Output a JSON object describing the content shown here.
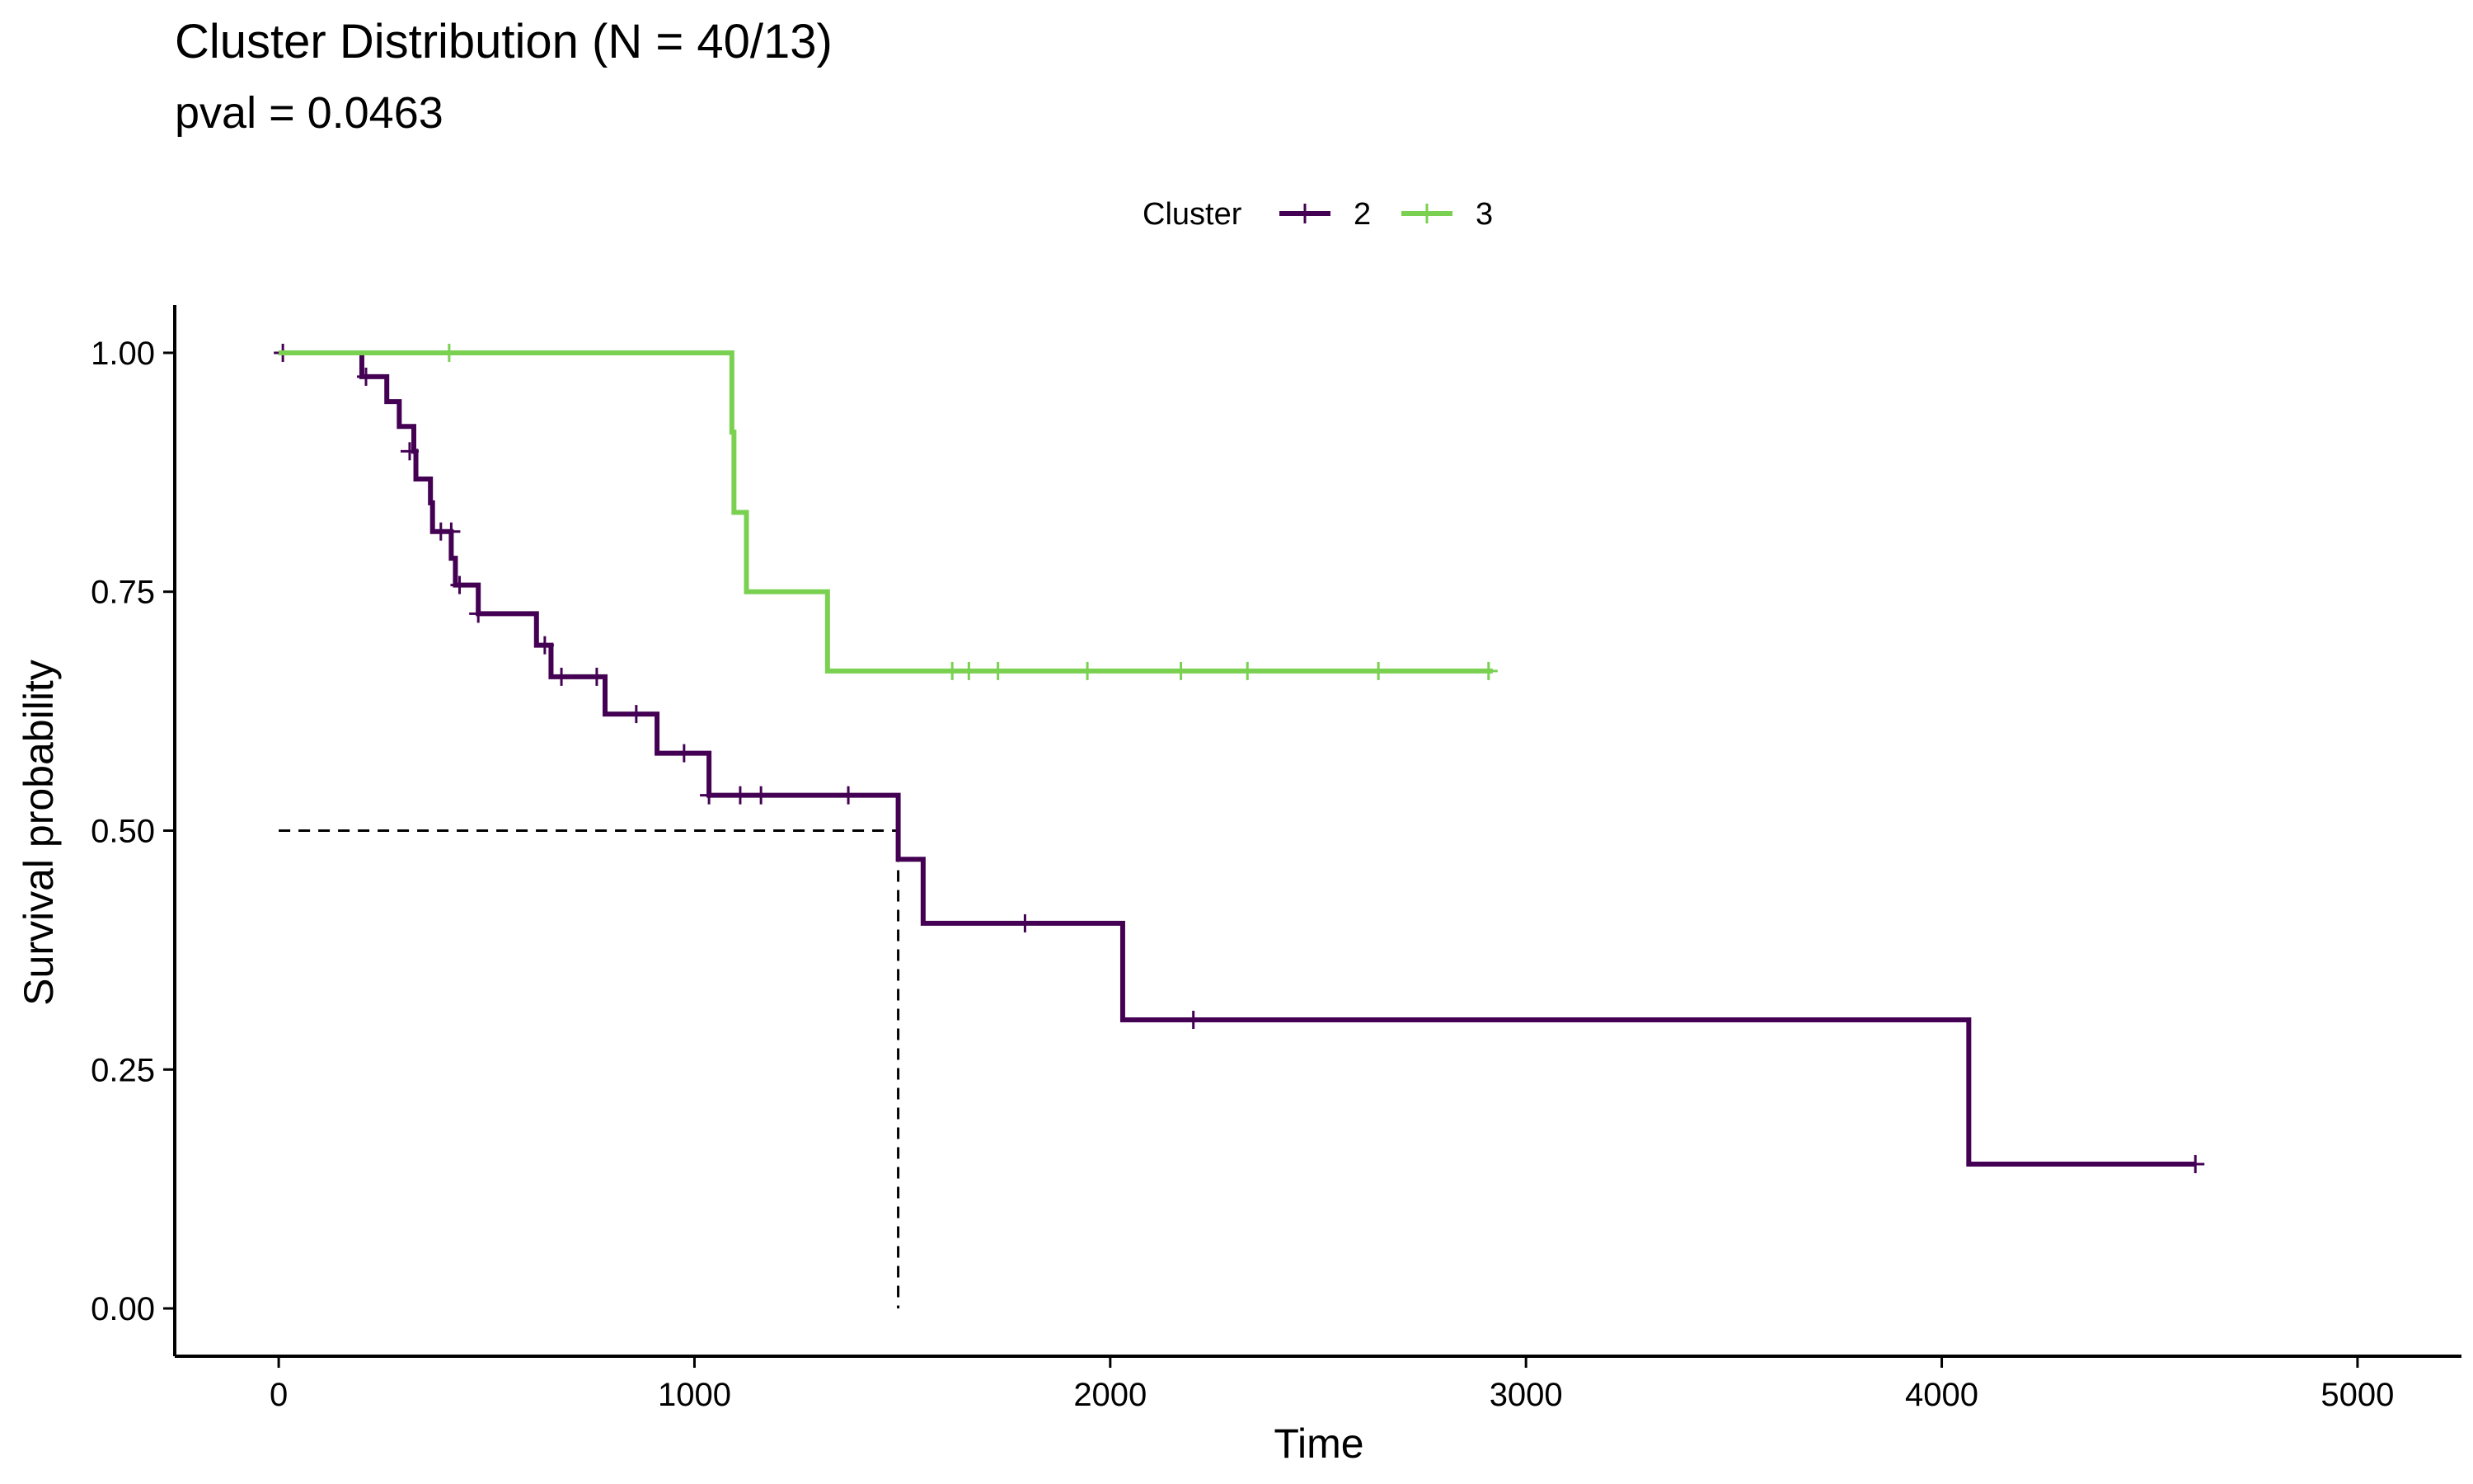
{
  "chart_data": {
    "type": "line",
    "subtype": "kaplan-meier",
    "title": "Cluster Distribution (N = 40/13)",
    "subtitle": "pval = 0.0463",
    "xlabel": "Time",
    "ylabel": "Survival probability",
    "xlim": [
      -250,
      5250
    ],
    "ylim": [
      -0.05,
      1.05
    ],
    "xticks": [
      0,
      1000,
      2000,
      3000,
      4000,
      5000
    ],
    "xtick_labels": [
      "0",
      "1000",
      "2000",
      "3000",
      "4000",
      "5000"
    ],
    "yticks": [
      0,
      0.25,
      0.5,
      0.75,
      1.0
    ],
    "ytick_labels": [
      "0.00",
      "0.25",
      "0.50",
      "0.75",
      "1.00"
    ],
    "grid": false,
    "legend": {
      "title": "Cluster",
      "position": "top"
    },
    "median_line": {
      "x": 1490,
      "y": 0.5
    },
    "series": [
      {
        "name": "2",
        "color": "#440154",
        "steps": [
          [
            0,
            1.0
          ],
          [
            200,
            0.975
          ],
          [
            260,
            0.949
          ],
          [
            290,
            0.923
          ],
          [
            325,
            0.897
          ],
          [
            330,
            0.868
          ],
          [
            365,
            0.843
          ],
          [
            370,
            0.813
          ],
          [
            415,
            0.785
          ],
          [
            425,
            0.757
          ],
          [
            480,
            0.727
          ],
          [
            620,
            0.694
          ],
          [
            655,
            0.661
          ],
          [
            785,
            0.622
          ],
          [
            910,
            0.581
          ],
          [
            1035,
            0.537
          ],
          [
            1490,
            0.47
          ],
          [
            1550,
            0.403
          ],
          [
            2030,
            0.302
          ],
          [
            4065,
            0.151
          ],
          [
            4610,
            0.151
          ]
        ],
        "censored": [
          [
            10,
            1.0
          ],
          [
            210,
            0.975
          ],
          [
            315,
            0.897
          ],
          [
            390,
            0.813
          ],
          [
            415,
            0.813
          ],
          [
            435,
            0.757
          ],
          [
            480,
            0.727
          ],
          [
            640,
            0.694
          ],
          [
            680,
            0.661
          ],
          [
            765,
            0.661
          ],
          [
            860,
            0.622
          ],
          [
            975,
            0.581
          ],
          [
            1035,
            0.537
          ],
          [
            1110,
            0.537
          ],
          [
            1160,
            0.537
          ],
          [
            1370,
            0.537
          ],
          [
            1795,
            0.403
          ],
          [
            2200,
            0.302
          ],
          [
            4610,
            0.151
          ]
        ]
      },
      {
        "name": "3",
        "color": "#7AD151",
        "steps": [
          [
            0,
            1.0
          ],
          [
            1090,
            0.917
          ],
          [
            1095,
            0.833
          ],
          [
            1125,
            0.75
          ],
          [
            1320,
            0.667
          ],
          [
            2920,
            0.667
          ]
        ],
        "censored": [
          [
            410,
            1.0
          ],
          [
            1620,
            0.667
          ],
          [
            1660,
            0.667
          ],
          [
            1730,
            0.667
          ],
          [
            1945,
            0.667
          ],
          [
            2170,
            0.667
          ],
          [
            2330,
            0.667
          ],
          [
            2645,
            0.667
          ],
          [
            2910,
            0.667
          ]
        ]
      }
    ]
  }
}
